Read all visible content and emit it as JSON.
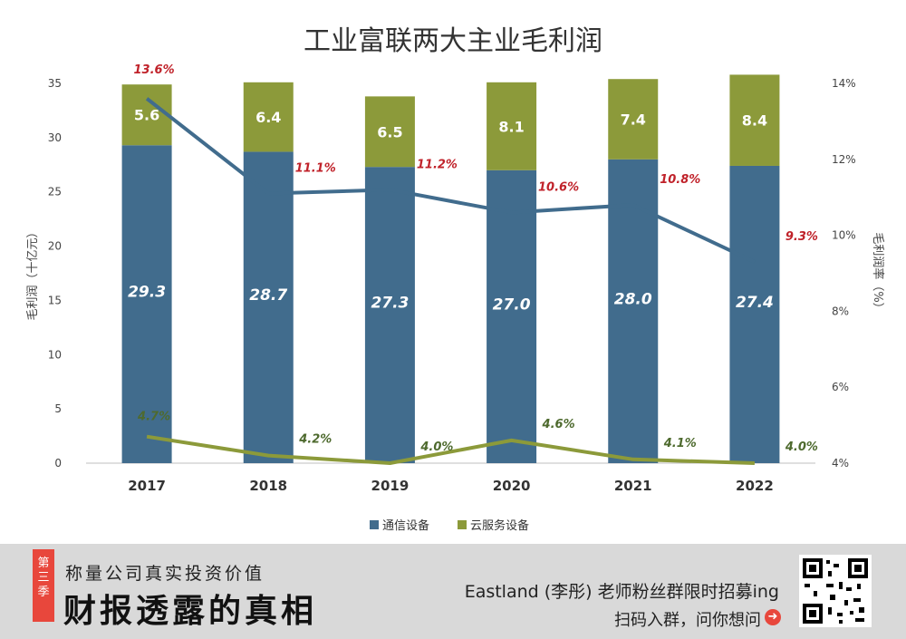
{
  "chart_data": {
    "type": "bar",
    "title": "工业富联两大主业毛利润",
    "categories": [
      "2017",
      "2018",
      "2019",
      "2020",
      "2021",
      "2022"
    ],
    "series": [
      {
        "name": "通信设备",
        "kind": "bar",
        "color": "#416c8d",
        "values": [
          29.3,
          28.7,
          27.3,
          27.0,
          28.0,
          27.4
        ]
      },
      {
        "name": "云服务设备",
        "kind": "bar",
        "color": "#8c9a3a",
        "values": [
          5.6,
          6.4,
          6.5,
          8.1,
          7.4,
          8.4
        ]
      },
      {
        "name": "通信设备毛利率",
        "kind": "line",
        "axis": "right",
        "color": "#416c8d",
        "values": [
          13.6,
          11.1,
          11.2,
          10.6,
          10.8,
          9.3
        ],
        "labels": [
          "13.6%",
          "11.1%",
          "11.2%",
          "10.6%",
          "10.8%",
          "9.3%"
        ],
        "label_color": "#c0222a"
      },
      {
        "name": "云服务设备毛利率",
        "kind": "line",
        "axis": "right",
        "color": "#8c9a3a",
        "values": [
          4.7,
          4.2,
          4.0,
          4.6,
          4.1,
          4.0
        ],
        "labels": [
          "4.7%",
          "4.2%",
          "4.0%",
          "4.6%",
          "4.1%",
          "4.0%"
        ],
        "label_color": "#4e6a2e"
      }
    ],
    "ylabel": "毛利润（十亿元）",
    "ylim": [
      0,
      35
    ],
    "yticks": [
      0,
      5,
      10,
      15,
      20,
      25,
      30,
      35
    ],
    "y2label": "毛利润率（%）",
    "y2lim": [
      4,
      14
    ],
    "y2ticks": [
      4,
      6,
      8,
      10,
      12,
      14
    ],
    "y2tick_labels": [
      "4%",
      "6%",
      "8%",
      "10%",
      "12%",
      "14%"
    ],
    "legend": [
      "通信设备",
      "云服务设备"
    ]
  },
  "footer": {
    "season": "第三季",
    "subtitle": "称量公司真实投资价值",
    "main_title": "财报透露的真相",
    "promo_line1": "Eastland (李彤) 老师粉丝群限时招募ing",
    "promo_line2": "扫码入群，问你想问",
    "arrow_icon": "➜"
  }
}
